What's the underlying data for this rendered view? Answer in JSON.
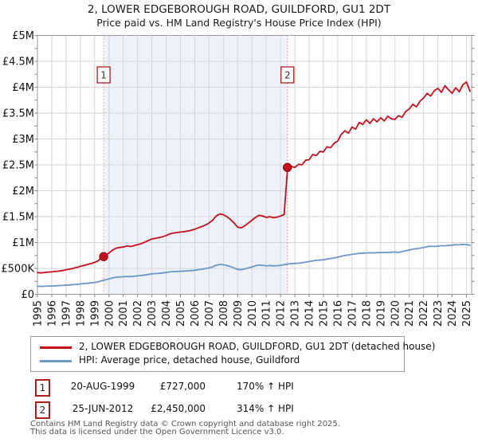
{
  "title": "2, LOWER EDGEBOROUGH ROAD, GUILDFORD, GU1 2DT",
  "subtitle": "Price paid vs. HM Land Registry's House Price Index (HPI)",
  "legend": {
    "property_label": "2, LOWER EDGEBOROUGH ROAD, GUILDFORD, GU1 2DT (detached house)",
    "hpi_label": "HPI: Average price, detached house, Guildford"
  },
  "sales": [
    {
      "num": "1",
      "date": "20-AUG-1999",
      "price": "£727,000",
      "hpi_change": "170% ↑ HPI"
    },
    {
      "num": "2",
      "date": "25-JUN-2012",
      "price": "£2,450,000",
      "hpi_change": "314% ↑ HPI"
    }
  ],
  "footer": {
    "line1": "Contains HM Land Registry data © Crown copyright and database right 2025.",
    "line2": "This data is licensed under the Open Government Licence v3.0."
  },
  "colors": {
    "property_line": "#c2101c",
    "hpi_line": "#6b96c9",
    "sale_dashed_line": "#ef8a8a",
    "shaded_region": "#eef1fa",
    "grid": "#d6d6d6",
    "plot_border": "#9a9a9a",
    "marker_box_border": "#b01c1c"
  },
  "chart_data": {
    "type": "line",
    "title": "2, LOWER EDGEBOROUGH ROAD, GUILDFORD, GU1 2DT",
    "subtitle": "Price paid vs. HM Land Registry's House Price Index (HPI)",
    "xlabel": "",
    "ylabel": "",
    "grid": true,
    "legend_position": "bottom",
    "x_ticks": [
      1995,
      1996,
      1997,
      1998,
      1999,
      2000,
      2001,
      2002,
      2003,
      2004,
      2005,
      2006,
      2007,
      2008,
      2009,
      2010,
      2011,
      2012,
      2013,
      2014,
      2015,
      2016,
      2017,
      2018,
      2019,
      2020,
      2021,
      2022,
      2023,
      2024,
      2025
    ],
    "y_tick_labels": [
      "£0",
      "£500K",
      "£1M",
      "£1.5M",
      "£2M",
      "£2.5M",
      "£3M",
      "£3.5M",
      "£4M",
      "£4.5M",
      "£5M"
    ],
    "y_tick_values_k": [
      0,
      500,
      1000,
      1500,
      2000,
      2500,
      3000,
      3500,
      4000,
      4500,
      5000
    ],
    "ylim_k": [
      0,
      5000
    ],
    "xlim": [
      1995,
      2025.4
    ],
    "shaded_region": {
      "from_year": 1999.63,
      "to_year": 2012.48
    },
    "markers": [
      {
        "label": "1",
        "year": 1999.63,
        "value_k": 727,
        "date": "20-AUG-1999"
      },
      {
        "label": "2",
        "year": 2012.48,
        "value_k": 2450,
        "date": "25-JUN-2012"
      }
    ],
    "series": [
      {
        "name": "price-paid-hpi-indexed",
        "color": "#c2101c",
        "start_year": 1995,
        "step_years": 0.25,
        "values_k": [
          419,
          413,
          421,
          427,
          432,
          440,
          448,
          459,
          473,
          486,
          502,
          518,
          540,
          559,
          575,
          594,
          616,
          648,
          707,
          751,
          797,
          851,
          891,
          905,
          913,
          932,
          923,
          940,
          959,
          977,
          1004,
          1040,
          1067,
          1080,
          1094,
          1112,
          1134,
          1166,
          1183,
          1193,
          1202,
          1210,
          1220,
          1237,
          1256,
          1283,
          1310,
          1337,
          1377,
          1431,
          1512,
          1553,
          1539,
          1499,
          1445,
          1377,
          1296,
          1283,
          1323,
          1377,
          1431,
          1485,
          1526,
          1512,
          1485,
          1499,
          1480,
          1490,
          1512,
          1539,
          2450,
          2470,
          2450,
          2510,
          2500,
          2590,
          2600,
          2700,
          2680,
          2760,
          2750,
          2850,
          2830,
          2920,
          2960,
          3090,
          3160,
          3110,
          3230,
          3190,
          3320,
          3280,
          3370,
          3300,
          3390,
          3330,
          3410,
          3350,
          3440,
          3390,
          3380,
          3450,
          3420,
          3530,
          3580,
          3670,
          3620,
          3730,
          3790,
          3880,
          3830,
          3930,
          3980,
          3900,
          4030,
          3950,
          3880,
          3990,
          3910,
          4050,
          4100,
          3920
        ]
      },
      {
        "name": "hpi-average-guildford-detached",
        "color": "#6b96c9",
        "start_year": 1995,
        "step_years": 0.25,
        "values_k": [
          155,
          153,
          156,
          158,
          160,
          163,
          166,
          170,
          175,
          180,
          186,
          192,
          200,
          207,
          213,
          220,
          228,
          240,
          262,
          278,
          295,
          315,
          330,
          335,
          338,
          345,
          342,
          348,
          355,
          362,
          372,
          385,
          395,
          400,
          405,
          412,
          420,
          432,
          438,
          442,
          445,
          448,
          452,
          458,
          465,
          475,
          485,
          495,
          510,
          530,
          560,
          575,
          570,
          555,
          535,
          510,
          480,
          475,
          490,
          510,
          530,
          550,
          565,
          560,
          550,
          555,
          548,
          552,
          560,
          570,
          585,
          592,
          595,
          600,
          610,
          620,
          632,
          645,
          655,
          660,
          668,
          680,
          692,
          700,
          715,
          735,
          750,
          760,
          770,
          782,
          790,
          795,
          798,
          802,
          800,
          805,
          805,
          810,
          808,
          812,
          815,
          810,
          825,
          840,
          855,
          870,
          880,
          890,
          905,
          920,
          930,
          925,
          930,
          940,
          935,
          945,
          950,
          960,
          955,
          965,
          958,
          948
        ]
      }
    ]
  }
}
